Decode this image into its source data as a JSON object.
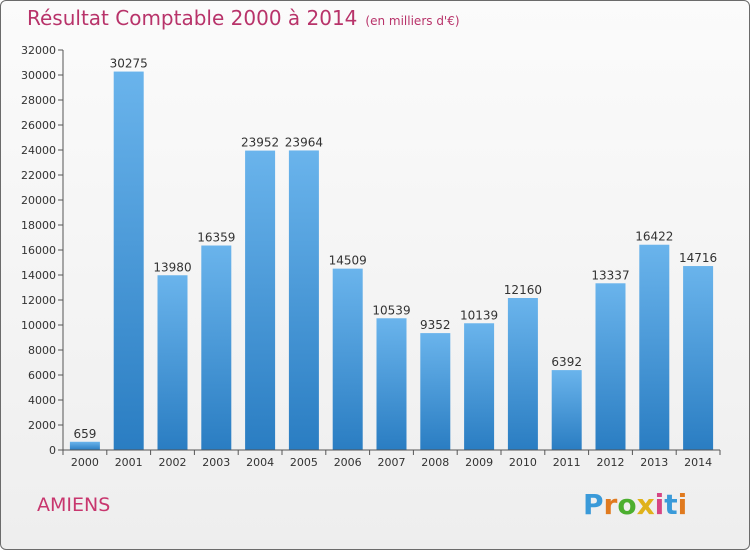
{
  "chart_data": {
    "type": "bar",
    "title": "Résultat Comptable 2000 à 2014",
    "subtitle": "(en milliers d'€)",
    "categories": [
      "2000",
      "2001",
      "2002",
      "2003",
      "2004",
      "2005",
      "2006",
      "2007",
      "2008",
      "2009",
      "2010",
      "2011",
      "2012",
      "2013",
      "2014"
    ],
    "values": [
      659,
      30275,
      13980,
      16359,
      23952,
      23964,
      14509,
      10539,
      9352,
      10139,
      12160,
      6392,
      13337,
      16422,
      14716
    ],
    "data_labels": [
      "659",
      "30275",
      "13980",
      "16359",
      "23952",
      "23964",
      "14509",
      "10539",
      "9352",
      "10139",
      "12160",
      "6392",
      "13337",
      "16422",
      "14716"
    ],
    "yticks": [
      "0",
      "2000",
      "4000",
      "6000",
      "8000",
      "10000",
      "12000",
      "14000",
      "16000",
      "18000",
      "20000",
      "22000",
      "24000",
      "26000",
      "28000",
      "30000",
      "32000"
    ],
    "ylim": [
      0,
      32000
    ],
    "xlabel": "",
    "ylabel": "",
    "grid": false,
    "bar_color_top": "#6ab4ec",
    "bar_color_bottom": "#2a7dc2"
  },
  "footer": {
    "city": "AMIENS",
    "logo_letters": [
      "P",
      "r",
      "o",
      "x",
      "i",
      "t",
      "i"
    ],
    "logo_colors": [
      "#3a9ad9",
      "#e07a1f",
      "#4caf2f",
      "#e0b21a",
      "#d64584",
      "#3a9ad9",
      "#e07a1f"
    ]
  }
}
